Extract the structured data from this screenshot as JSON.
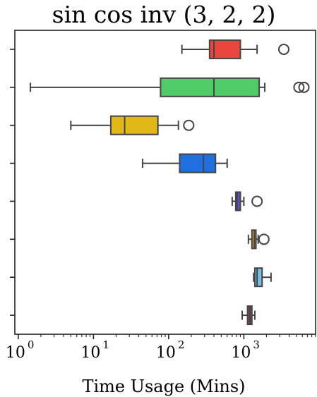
{
  "chart_data": {
    "type": "box",
    "title": "sin cos inv (3, 2, 2)",
    "xlabel": "Time Usage (Mins)",
    "ylabel": "",
    "xscale": "log",
    "xlim": [
      0.9,
      9000
    ],
    "x_ticks": [
      {
        "value": 1,
        "base": "10",
        "exp": "0"
      },
      {
        "value": 10,
        "base": "10",
        "exp": "1"
      },
      {
        "value": 100,
        "base": "10",
        "exp": "2"
      },
      {
        "value": 1000,
        "base": "10",
        "exp": "3"
      }
    ],
    "y_tick_labels": [
      "",
      "",
      "",
      "",
      "",
      "",
      "",
      ""
    ],
    "grid": false,
    "series": [
      {
        "color": "#e8463e",
        "whisker_low": 150,
        "q1": 350,
        "median": 400,
        "q3": 900,
        "whisker_high": 1500,
        "outliers": [
          3400
        ]
      },
      {
        "color": "#4fcb67",
        "whisker_low": 1.45,
        "q1": 78,
        "median": 400,
        "q3": 1600,
        "whisker_high": 1900,
        "outliers": [
          5400,
          6300
        ]
      },
      {
        "color": "#e0b817",
        "whisker_low": 5,
        "q1": 17,
        "median": 26,
        "q3": 72,
        "whisker_high": 135,
        "outliers": [
          185
        ]
      },
      {
        "color": "#1f6fe0",
        "whisker_low": 45,
        "q1": 140,
        "median": 290,
        "q3": 420,
        "whisker_high": 600,
        "outliers": []
      },
      {
        "color": "#5b4bd1",
        "whisker_low": 700,
        "q1": 780,
        "median": 810,
        "q3": 900,
        "whisker_high": 1000,
        "outliers": [
          1500
        ]
      },
      {
        "color": "#e28e2a",
        "whisker_low": 1150,
        "q1": 1280,
        "median": 1380,
        "q3": 1450,
        "whisker_high": 1550,
        "outliers": [
          1850
        ]
      },
      {
        "color": "#79bde0",
        "whisker_low": 1350,
        "q1": 1400,
        "median": 1500,
        "q3": 1750,
        "whisker_high": 2300,
        "outliers": []
      },
      {
        "color": "#7d4c57",
        "whisker_low": 950,
        "q1": 1120,
        "median": 1200,
        "q3": 1280,
        "whisker_high": 1400,
        "outliers": []
      }
    ]
  }
}
